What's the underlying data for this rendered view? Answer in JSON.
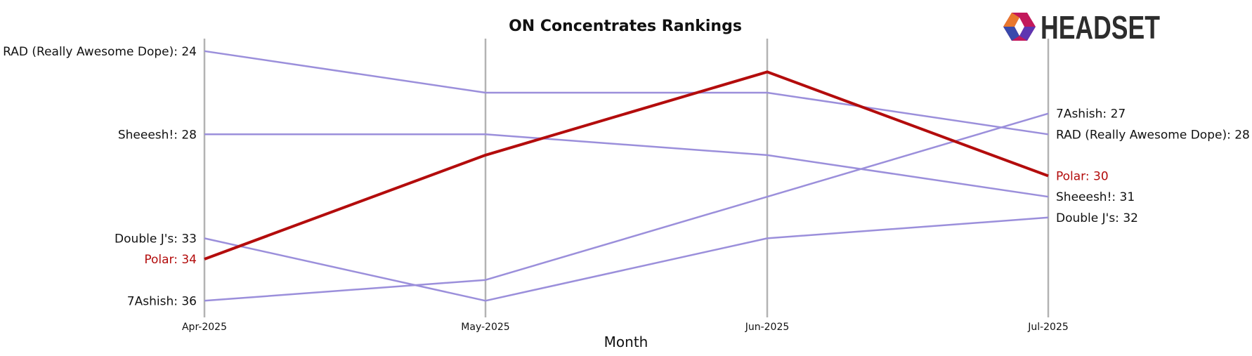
{
  "chart_data": {
    "type": "line",
    "title": "ON Concentrates Rankings",
    "xlabel": "Month",
    "ylabel": "",
    "categories": [
      "Apr-2025",
      "May-2025",
      "Jun-2025",
      "Jul-2025"
    ],
    "y_inverted": true,
    "ylim": [
      23.4,
      36.8
    ],
    "series": [
      {
        "name": "RAD (Really Awesome Dope)",
        "values": [
          24,
          26,
          26,
          28
        ],
        "highlight": false
      },
      {
        "name": "Sheeesh!",
        "values": [
          28,
          28,
          29,
          31
        ],
        "highlight": false
      },
      {
        "name": "Double J's",
        "values": [
          33,
          36,
          33,
          32
        ],
        "highlight": false
      },
      {
        "name": "Polar",
        "values": [
          34,
          29,
          25,
          30
        ],
        "highlight": true
      },
      {
        "name": "7Ashish",
        "values": [
          36,
          35,
          31,
          27
        ],
        "highlight": false
      }
    ],
    "colors": {
      "series": "#9b8fdb",
      "highlight": "#b30c0c",
      "gridline": "#b3b3b3",
      "text": "#111111"
    }
  },
  "branding": {
    "logo_text": "HEADSET",
    "logo_icon": "headset-hexagon-icon"
  }
}
